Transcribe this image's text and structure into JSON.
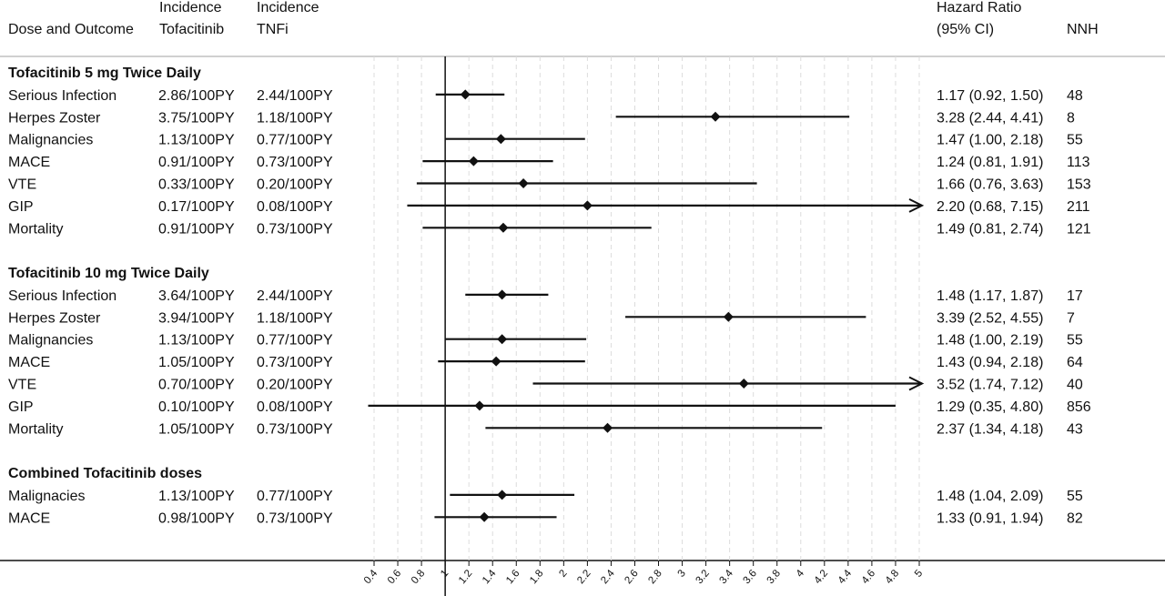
{
  "header": {
    "dose_outcome": "Dose and Outcome",
    "incidence_tofa_1": "Incidence",
    "incidence_tofa_2": "Tofacitinib",
    "incidence_tnfi_1": "Incidence",
    "incidence_tnfi_2": "TNFi",
    "hr_1": "Hazard Ratio",
    "hr_2": "(95% CI)",
    "nnh": "NNH"
  },
  "chart_data": {
    "type": "forest",
    "reference_line": 1,
    "xlim": [
      0.4,
      5
    ],
    "x_ticks": [
      0.4,
      0.6,
      0.8,
      1,
      1.2,
      1.4,
      1.6,
      1.8,
      2,
      2.2,
      2.4,
      2.6,
      2.8,
      3,
      3.2,
      3.4,
      3.6,
      3.8,
      4,
      4.2,
      4.4,
      4.6,
      4.8,
      5
    ],
    "x_tick_labels": [
      "0.4",
      "0.6",
      "0.8",
      "1",
      "1.2",
      "1.4",
      "1.6",
      "1.8",
      "2",
      "2.2",
      "2.4",
      "2.6",
      "2.8",
      "3",
      "3.2",
      "3.4",
      "3.6",
      "3.8",
      "4",
      "4.2",
      "4.4",
      "4.6",
      "4.8",
      "5"
    ],
    "sections": [
      {
        "title": "Tofacitinib 5 mg Twice Daily",
        "rows": [
          {
            "outcome": "Serious Infection",
            "inc_tofa": "2.86/100PY",
            "inc_tnfi": "2.44/100PY",
            "hr": 1.17,
            "lo": 0.92,
            "hi": 1.5,
            "hr_text": "1.17 (0.92, 1.50)",
            "nnh": "48"
          },
          {
            "outcome": "Herpes Zoster",
            "inc_tofa": "3.75/100PY",
            "inc_tnfi": "1.18/100PY",
            "hr": 3.28,
            "lo": 2.44,
            "hi": 4.41,
            "hr_text": "3.28 (2.44, 4.41)",
            "nnh": "8"
          },
          {
            "outcome": "Malignancies",
            "inc_tofa": "1.13/100PY",
            "inc_tnfi": "0.77/100PY",
            "hr": 1.47,
            "lo": 1.0,
            "hi": 2.18,
            "hr_text": "1.47 (1.00, 2.18)",
            "nnh": "55"
          },
          {
            "outcome": "MACE",
            "inc_tofa": "0.91/100PY",
            "inc_tnfi": "0.73/100PY",
            "hr": 1.24,
            "lo": 0.81,
            "hi": 1.91,
            "hr_text": "1.24 (0.81, 1.91)",
            "nnh": "113"
          },
          {
            "outcome": "VTE",
            "inc_tofa": "0.33/100PY",
            "inc_tnfi": "0.20/100PY",
            "hr": 1.66,
            "lo": 0.76,
            "hi": 3.63,
            "hr_text": "1.66 (0.76, 3.63)",
            "nnh": "153"
          },
          {
            "outcome": "GIP",
            "inc_tofa": "0.17/100PY",
            "inc_tnfi": "0.08/100PY",
            "hr": 2.2,
            "lo": 0.68,
            "hi": 7.15,
            "hr_text": "2.20 (0.68, 7.15)",
            "nnh": "211",
            "arrow": true
          },
          {
            "outcome": "Mortality",
            "inc_tofa": "0.91/100PY",
            "inc_tnfi": "0.73/100PY",
            "hr": 1.49,
            "lo": 0.81,
            "hi": 2.74,
            "hr_text": "1.49 (0.81, 2.74)",
            "nnh": "121"
          }
        ]
      },
      {
        "title": "Tofacitinib 10 mg Twice Daily",
        "rows": [
          {
            "outcome": "Serious Infection",
            "inc_tofa": "3.64/100PY",
            "inc_tnfi": "2.44/100PY",
            "hr": 1.48,
            "lo": 1.17,
            "hi": 1.87,
            "hr_text": "1.48 (1.17, 1.87)",
            "nnh": "17"
          },
          {
            "outcome": "Herpes Zoster",
            "inc_tofa": "3.94/100PY",
            "inc_tnfi": "1.18/100PY",
            "hr": 3.39,
            "lo": 2.52,
            "hi": 4.55,
            "hr_text": "3.39 (2.52, 4.55)",
            "nnh": "7"
          },
          {
            "outcome": "Malignancies",
            "inc_tofa": "1.13/100PY",
            "inc_tnfi": "0.77/100PY",
            "hr": 1.48,
            "lo": 1.0,
            "hi": 2.19,
            "hr_text": "1.48 (1.00, 2.19)",
            "nnh": "55"
          },
          {
            "outcome": "MACE",
            "inc_tofa": "1.05/100PY",
            "inc_tnfi": "0.73/100PY",
            "hr": 1.43,
            "lo": 0.94,
            "hi": 2.18,
            "hr_text": "1.43 (0.94, 2.18)",
            "nnh": "64"
          },
          {
            "outcome": "VTE",
            "inc_tofa": "0.70/100PY",
            "inc_tnfi": "0.20/100PY",
            "hr": 3.52,
            "lo": 1.74,
            "hi": 7.12,
            "hr_text": "3.52 (1.74, 7.12)",
            "nnh": "40",
            "arrow": true
          },
          {
            "outcome": "GIP",
            "inc_tofa": "0.10/100PY",
            "inc_tnfi": "0.08/100PY",
            "hr": 1.29,
            "lo": 0.35,
            "hi": 4.8,
            "hr_text": "1.29 (0.35, 4.80)",
            "nnh": "856"
          },
          {
            "outcome": "Mortality",
            "inc_tofa": "1.05/100PY",
            "inc_tnfi": "0.73/100PY",
            "hr": 2.37,
            "lo": 1.34,
            "hi": 4.18,
            "hr_text": "2.37 (1.34, 4.18)",
            "nnh": "43"
          }
        ]
      },
      {
        "title": "Combined Tofacitinib doses",
        "rows": [
          {
            "outcome": "Malignacies",
            "inc_tofa": "1.13/100PY",
            "inc_tnfi": "0.77/100PY",
            "hr": 1.48,
            "lo": 1.04,
            "hi": 2.09,
            "hr_text": "1.48 (1.04, 2.09)",
            "nnh": "55"
          },
          {
            "outcome": "MACE",
            "inc_tofa": "0.98/100PY",
            "inc_tnfi": "0.73/100PY",
            "hr": 1.33,
            "lo": 0.91,
            "hi": 1.94,
            "hr_text": "1.33 (0.91, 1.94)",
            "nnh": "82"
          }
        ]
      }
    ]
  }
}
